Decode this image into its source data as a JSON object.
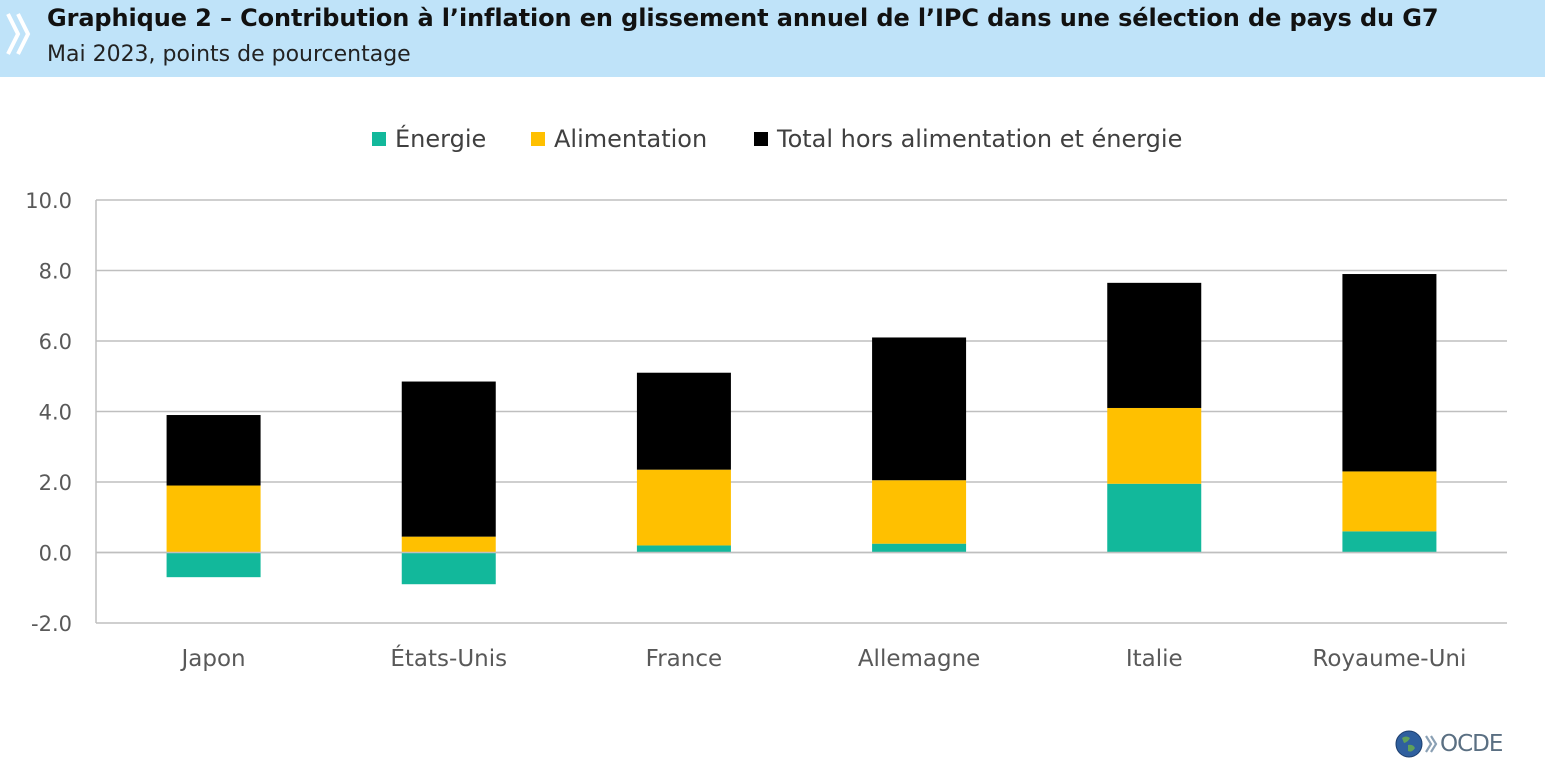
{
  "header": {
    "title": "Graphique 2 – Contribution à l’inflation en glissement annuel de l’IPC dans une sélection de pays du G7",
    "subtitle": "Mai 2023, points de pourcentage"
  },
  "logo": {
    "text": "OCDE"
  },
  "colors": {
    "header_bg": "#bfe3f9",
    "energy": "#12b89b",
    "food": "#ffc000",
    "core": "#000000",
    "grid": "#bfbfbf"
  },
  "chart_data": {
    "type": "bar",
    "stacked": true,
    "categories": [
      "Japon",
      "États-Unis",
      "France",
      "Allemagne",
      "Italie",
      "Royaume-Uni"
    ],
    "series": [
      {
        "name": "Énergie",
        "color": "#12b89b",
        "values": [
          -0.7,
          -0.9,
          0.2,
          0.25,
          1.95,
          0.6
        ]
      },
      {
        "name": "Alimentation",
        "color": "#ffc000",
        "values": [
          1.9,
          0.45,
          2.15,
          1.8,
          2.15,
          1.7
        ]
      },
      {
        "name": "Total hors alimentation et énergie",
        "color": "#000000",
        "values": [
          2.0,
          4.4,
          2.75,
          4.05,
          3.55,
          5.6
        ]
      }
    ],
    "ylim": [
      -2.0,
      10.0
    ],
    "yticks": [
      "10.0",
      "8.0",
      "6.0",
      "4.0",
      "2.0",
      "0.0",
      "-2.0"
    ],
    "grid": true,
    "legend_position": "top"
  }
}
